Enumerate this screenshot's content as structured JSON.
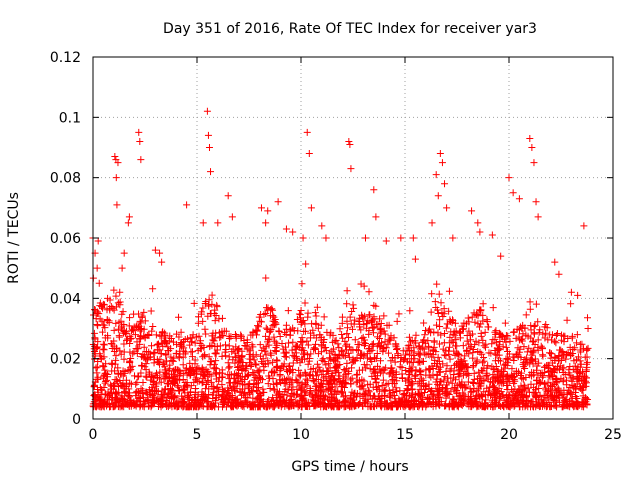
{
  "chart_data": {
    "type": "scatter",
    "title": "Day 351 of 2016, Rate Of TEC Index for receiver yar3",
    "xlabel": "GPS time / hours",
    "ylabel": "ROTI / TECUs",
    "xlim": [
      0,
      25
    ],
    "ylim": [
      0,
      0.12
    ],
    "xticks": [
      0,
      5,
      10,
      15,
      20,
      25
    ],
    "xtick_labels": [
      "0",
      "5",
      "10",
      "15",
      "20",
      "25"
    ],
    "yticks": [
      0,
      0.02,
      0.04,
      0.06,
      0.08,
      0.1,
      0.12
    ],
    "ytick_labels": [
      "0",
      "0.02",
      "0.04",
      "0.06",
      "0.08",
      "0.1",
      "0.12"
    ],
    "grid": true,
    "marker": "+",
    "color": "#ff0000",
    "series": [
      {
        "name": "ROTI",
        "x": [
          0.0,
          0.1,
          0.2,
          0.25,
          0.3,
          0.5,
          0.7,
          1.05,
          1.1,
          1.12,
          1.15,
          1.2,
          1.4,
          1.5,
          1.7,
          1.75,
          2.2,
          2.25,
          2.3,
          3.0,
          3.2,
          3.3,
          4.5,
          5.3,
          5.5,
          5.55,
          5.6,
          5.65,
          6.0,
          6.5,
          6.7,
          8.1,
          8.3,
          8.4,
          8.9,
          9.3,
          9.6,
          10.1,
          10.3,
          10.4,
          10.5,
          11.0,
          11.2,
          12.3,
          12.35,
          12.4,
          13.1,
          13.5,
          13.6,
          14.1,
          14.8,
          15.4,
          15.5,
          16.3,
          16.5,
          16.6,
          16.7,
          16.8,
          16.9,
          17.0,
          17.3,
          18.2,
          18.5,
          18.6,
          19.2,
          19.6,
          20.0,
          20.2,
          20.5,
          21.0,
          21.1,
          21.2,
          21.3,
          21.4,
          22.2,
          22.4,
          23.0,
          23.3,
          23.6,
          23.8
        ],
        "y": [
          0.06,
          0.055,
          0.05,
          0.059,
          0.045,
          0.038,
          0.04,
          0.087,
          0.086,
          0.08,
          0.071,
          0.085,
          0.05,
          0.055,
          0.065,
          0.067,
          0.095,
          0.092,
          0.086,
          0.056,
          0.055,
          0.052,
          0.071,
          0.065,
          0.102,
          0.094,
          0.09,
          0.082,
          0.065,
          0.074,
          0.067,
          0.07,
          0.065,
          0.069,
          0.072,
          0.063,
          0.062,
          0.06,
          0.095,
          0.088,
          0.07,
          0.064,
          0.06,
          0.092,
          0.091,
          0.083,
          0.06,
          0.076,
          0.067,
          0.059,
          0.06,
          0.06,
          0.053,
          0.065,
          0.081,
          0.074,
          0.088,
          0.085,
          0.078,
          0.07,
          0.06,
          0.069,
          0.065,
          0.062,
          0.061,
          0.054,
          0.08,
          0.075,
          0.073,
          0.093,
          0.09,
          0.085,
          0.072,
          0.067,
          0.052,
          0.048,
          0.042,
          0.041,
          0.064,
          0.03
        ]
      }
    ],
    "background_density": "dense cloud of points between 0.003 and 0.035 across 0 to 23.8 hours"
  }
}
